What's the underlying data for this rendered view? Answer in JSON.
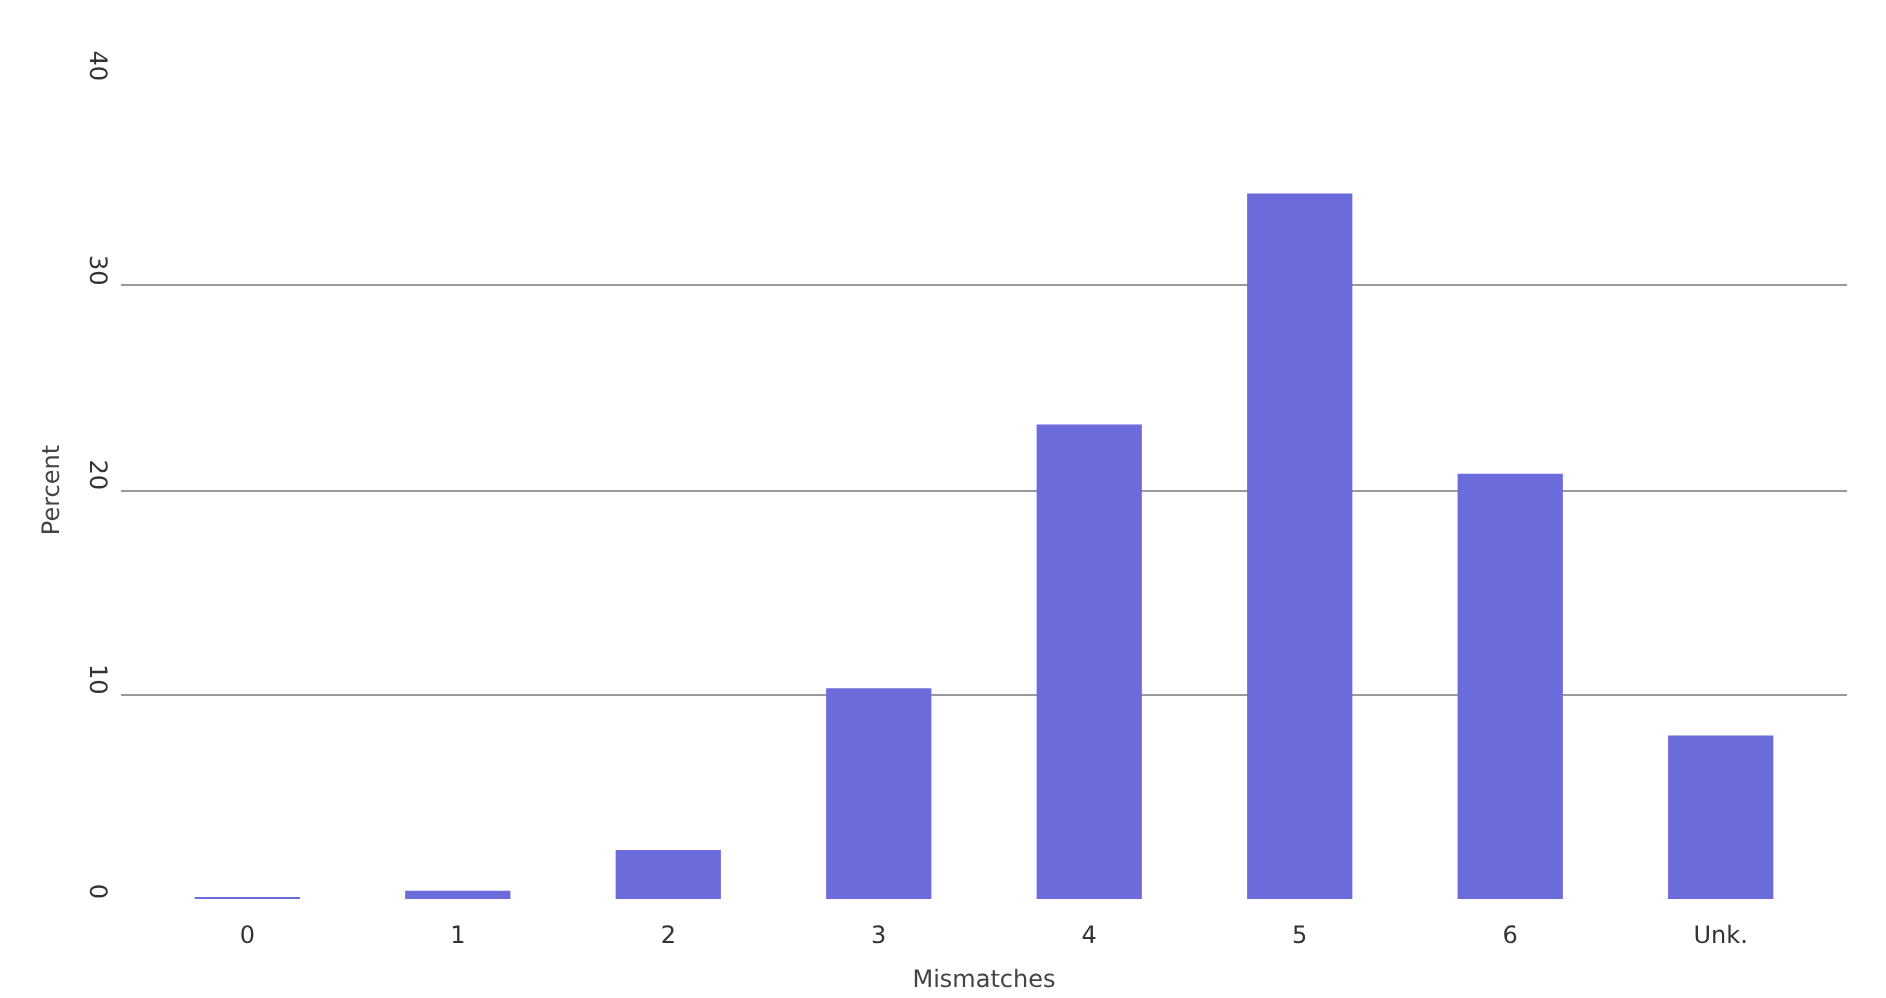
{
  "chart_data": {
    "type": "bar",
    "xlabel": "Mismatches",
    "ylabel": "Percent",
    "categories": [
      "0",
      "1",
      "2",
      "3",
      "4",
      "5",
      "6",
      "Unk."
    ],
    "values": [
      0.1,
      0.4,
      2.4,
      10.3,
      23.2,
      34.5,
      20.8,
      8.0
    ],
    "color": "#6b6bdb",
    "ylim": [
      0,
      40
    ],
    "yticks": [
      0,
      10,
      20,
      30,
      40
    ],
    "grid": "y"
  }
}
